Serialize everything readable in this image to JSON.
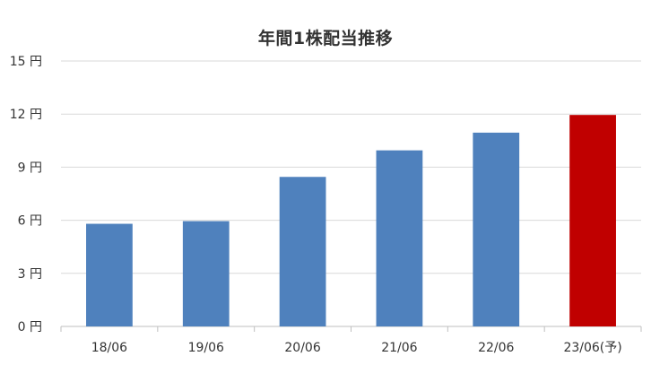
{
  "chart_data": {
    "type": "bar",
    "title": "年間1株配当推移",
    "xlabel": "",
    "ylabel": "",
    "y_unit": "円",
    "categories": [
      "18/06",
      "19/06",
      "20/06",
      "21/06",
      "22/06",
      "23/06(予)"
    ],
    "values": [
      5.8,
      5.95,
      8.45,
      9.95,
      10.95,
      11.95
    ],
    "ylim": [
      0,
      15
    ],
    "yticks": [
      "0 円",
      "3 円",
      "6 円",
      "9 円",
      "12 円",
      "15 円"
    ],
    "ytick_values": [
      0,
      3,
      6,
      9,
      12,
      15
    ],
    "grid": true,
    "legend": "none",
    "colors": {
      "actual": "#4F81BD",
      "forecast": "#C00000",
      "grid": "#D9D9D9",
      "axis": "#BFBFBF",
      "text": "#333333"
    },
    "bar_color_keys": [
      "actual",
      "actual",
      "actual",
      "actual",
      "actual",
      "forecast"
    ]
  }
}
